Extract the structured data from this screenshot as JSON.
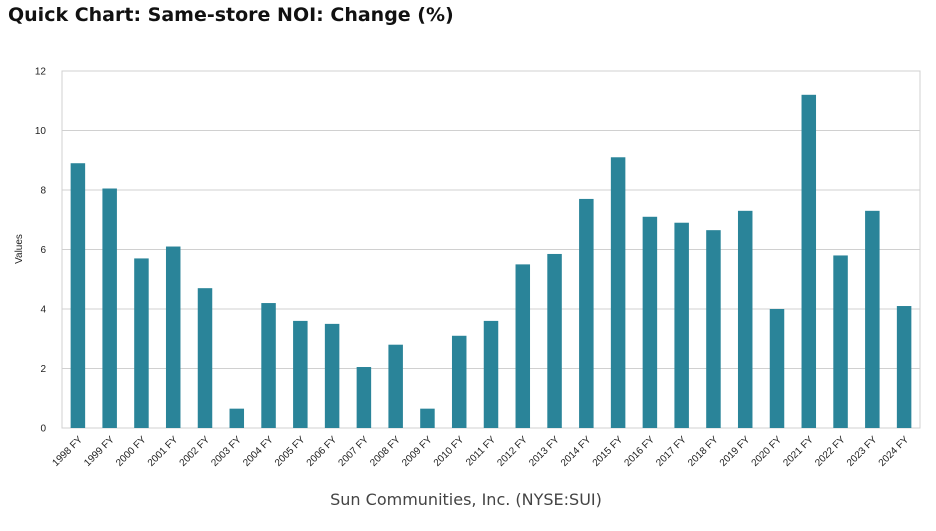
{
  "page": {
    "title": "Quick Chart: Same-store NOI: Change (%)"
  },
  "chart_data": {
    "type": "bar",
    "title": "Quick Chart: Same-store NOI: Change (%)",
    "xlabel": "Sun Communities, Inc. (NYSE:SUI)",
    "ylabel": "Values",
    "ylim": [
      0,
      12
    ],
    "yticks": [
      0,
      2,
      4,
      6,
      8,
      10,
      12
    ],
    "grid": true,
    "legend": "none",
    "bar_color": "#2a8499",
    "categories": [
      "1998 FY",
      "1999 FY",
      "2000 FY",
      "2001 FY",
      "2002 FY",
      "2003 FY",
      "2004 FY",
      "2005 FY",
      "2006 FY",
      "2007 FY",
      "2008 FY",
      "2009 FY",
      "2010 FY",
      "2011 FY",
      "2012 FY",
      "2013 FY",
      "2014 FY",
      "2015 FY",
      "2016 FY",
      "2017 FY",
      "2018 FY",
      "2019 FY",
      "2020 FY",
      "2021 FY",
      "2022 FY",
      "2023 FY",
      "2024 FY"
    ],
    "values": [
      8.9,
      8.05,
      5.7,
      6.1,
      4.7,
      0.65,
      4.2,
      3.6,
      3.5,
      2.05,
      2.8,
      0.65,
      3.1,
      3.6,
      5.5,
      5.85,
      7.7,
      9.1,
      7.1,
      6.9,
      6.65,
      7.3,
      4.0,
      11.2,
      5.8,
      7.3,
      4.1
    ]
  }
}
